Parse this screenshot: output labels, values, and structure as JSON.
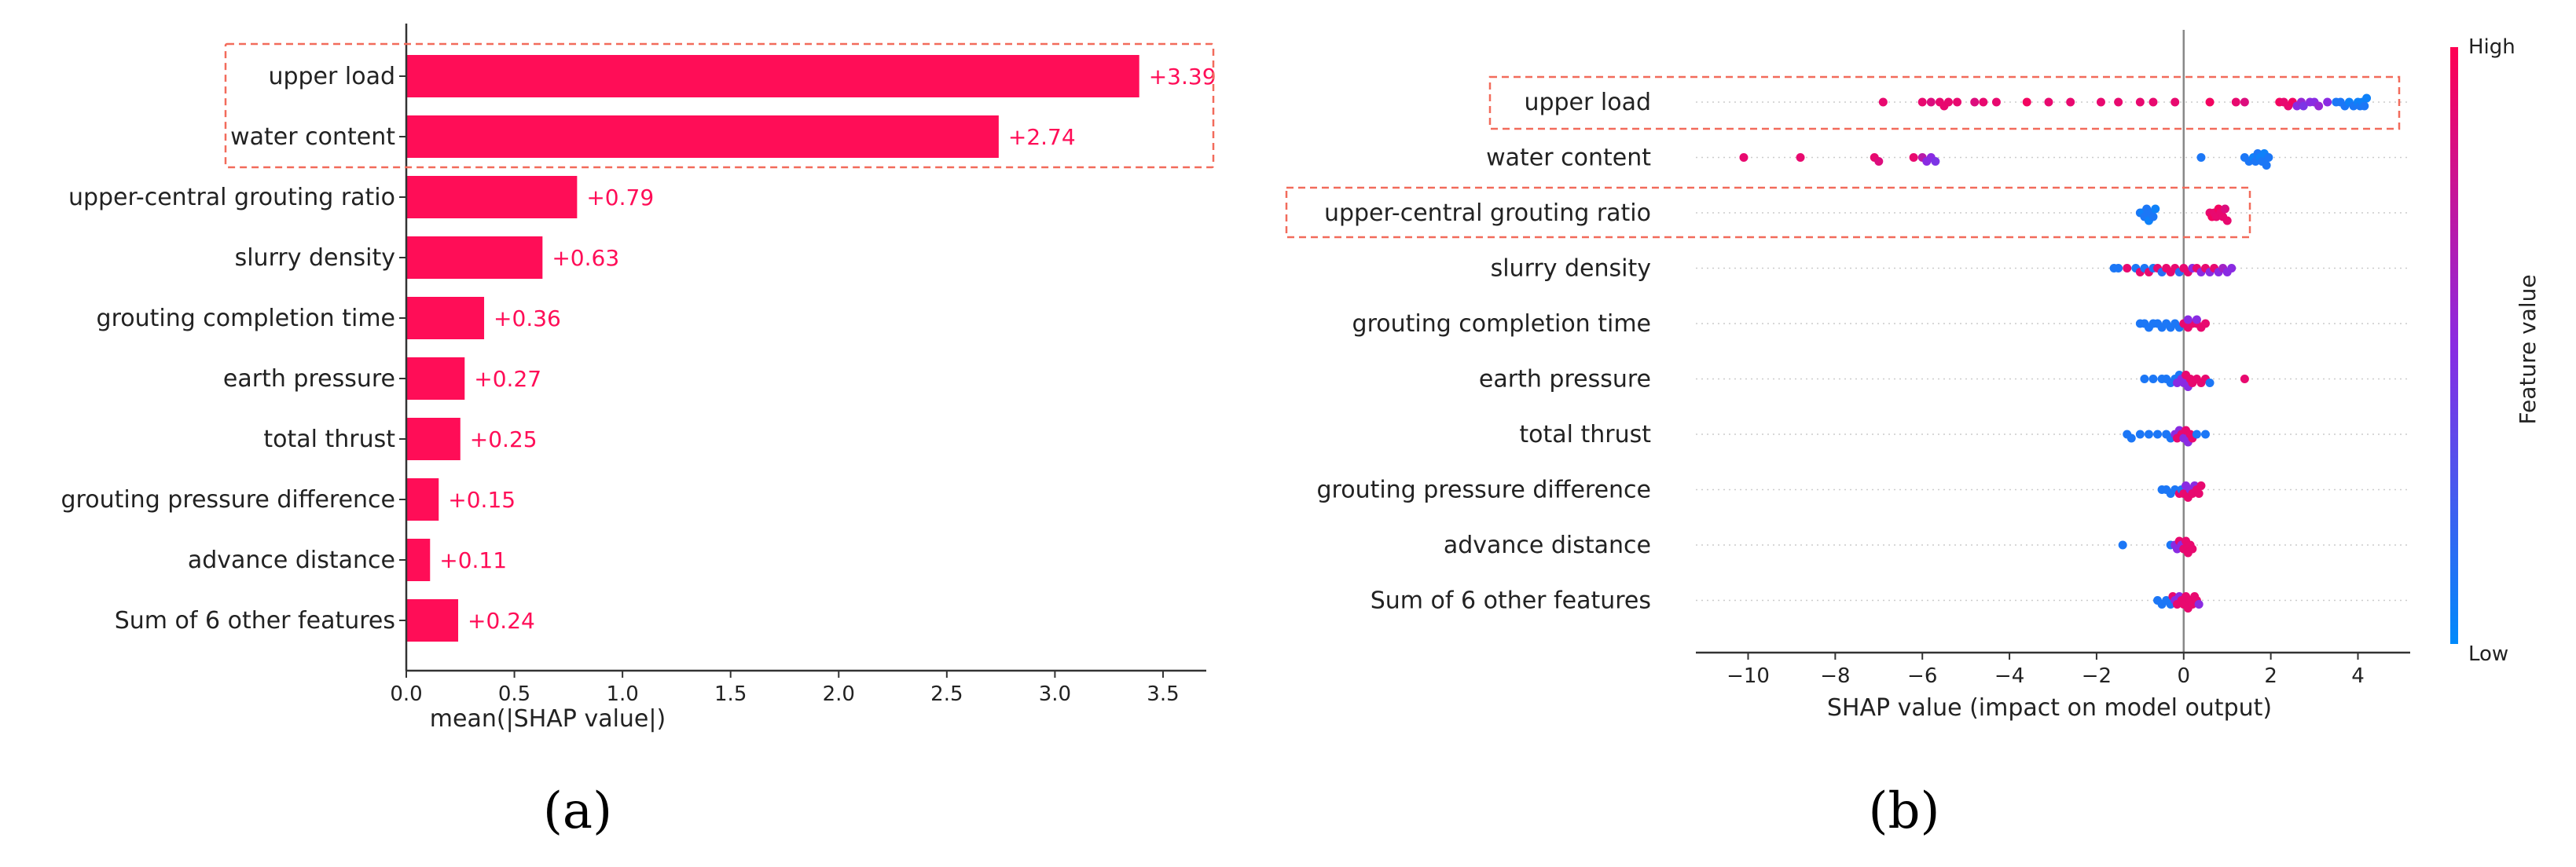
{
  "colors": {
    "bar": "#ff0d57",
    "value_label": "#ff0d57",
    "highlight_box": "#f26b5b",
    "axis": "#333333",
    "text": "#222222",
    "low": "#1e88e5",
    "high": "#ff0d57"
  },
  "panel_labels": {
    "a": "(a)",
    "b": "(b)"
  },
  "chart_data": [
    {
      "type": "bar",
      "orientation": "horizontal",
      "categories": [
        "upper load",
        "water content",
        "upper-central grouting ratio",
        "slurry density",
        "grouting completion time",
        "earth pressure",
        "total thrust",
        "grouting pressure difference",
        "advance distance",
        "Sum of 6 other features"
      ],
      "values": [
        3.39,
        2.74,
        0.79,
        0.63,
        0.36,
        0.27,
        0.25,
        0.15,
        0.11,
        0.24
      ],
      "value_labels": [
        "+3.39",
        "+2.74",
        "+0.79",
        "+0.63",
        "+0.36",
        "+0.27",
        "+0.25",
        "+0.15",
        "+0.11",
        "+0.24"
      ],
      "xlabel": "mean(|SHAP value|)",
      "xlim": [
        0,
        3.7
      ],
      "xticks": [
        0.0,
        0.5,
        1.0,
        1.5,
        2.0,
        2.5,
        3.0,
        3.5
      ],
      "xtick_labels": [
        "0.0",
        "0.5",
        "1.0",
        "1.5",
        "2.0",
        "2.5",
        "3.0",
        "3.5"
      ],
      "highlighted_categories": [
        "upper load",
        "water content"
      ],
      "grid": false
    },
    {
      "type": "scatter",
      "subtype": "beeswarm",
      "categories": [
        "upper load",
        "water content",
        "upper-central grouting ratio",
        "slurry density",
        "grouting completion time",
        "earth pressure",
        "total thrust",
        "grouting pressure difference",
        "advance distance",
        "Sum of 6 other features"
      ],
      "xlabel": "SHAP value (impact on model output)",
      "xlim": [
        -11.2,
        5.2
      ],
      "xticks": [
        -10,
        -8,
        -6,
        -4,
        -2,
        0,
        2,
        4
      ],
      "xtick_labels": [
        "−10",
        "−8",
        "−6",
        "−4",
        "−2",
        "0",
        "2",
        "4"
      ],
      "colorbar": {
        "label": "Feature value",
        "high_label": "High",
        "low_label": "Low"
      },
      "highlighted_categories": [
        "upper load",
        "upper-central grouting ratio"
      ],
      "series": [
        {
          "category": "upper load",
          "points": [
            [
              -6.9,
              0.9
            ],
            [
              -6.0,
              0.9
            ],
            [
              -5.8,
              0.85
            ],
            [
              -5.6,
              0.9
            ],
            [
              -5.5,
              0.9
            ],
            [
              -5.4,
              0.9
            ],
            [
              -5.2,
              0.9
            ],
            [
              -4.8,
              0.85
            ],
            [
              -4.6,
              0.9
            ],
            [
              -4.3,
              0.9
            ],
            [
              -3.6,
              0.95
            ],
            [
              -3.1,
              0.9
            ],
            [
              -2.6,
              0.9
            ],
            [
              -1.9,
              0.9
            ],
            [
              -1.5,
              0.9
            ],
            [
              -1.0,
              0.9
            ],
            [
              -0.7,
              0.9
            ],
            [
              -0.2,
              0.9
            ],
            [
              0.6,
              0.95
            ],
            [
              1.2,
              0.9
            ],
            [
              1.4,
              0.85
            ],
            [
              2.2,
              0.95
            ],
            [
              2.3,
              0.9
            ],
            [
              2.4,
              0.9
            ],
            [
              2.5,
              0.95
            ],
            [
              2.6,
              0.5
            ],
            [
              2.7,
              0.55
            ],
            [
              2.75,
              0.45
            ],
            [
              2.9,
              0.5
            ],
            [
              3.0,
              0.5
            ],
            [
              3.1,
              0.55
            ],
            [
              3.3,
              0.5
            ],
            [
              3.5,
              0.1
            ],
            [
              3.6,
              0.1
            ],
            [
              3.7,
              0.1
            ],
            [
              3.8,
              0.05
            ],
            [
              3.9,
              0.1
            ],
            [
              4.0,
              0.05
            ],
            [
              4.05,
              0.1
            ],
            [
              4.1,
              0.05
            ],
            [
              4.15,
              0.1
            ],
            [
              4.2,
              0.05
            ]
          ]
        },
        {
          "category": "water content",
          "points": [
            [
              -10.1,
              0.9
            ],
            [
              -8.8,
              0.9
            ],
            [
              -7.1,
              0.9
            ],
            [
              -7.0,
              0.85
            ],
            [
              -6.2,
              0.9
            ],
            [
              -6.0,
              0.7
            ],
            [
              -5.9,
              0.5
            ],
            [
              -5.8,
              0.5
            ],
            [
              -5.7,
              0.45
            ],
            [
              0.4,
              0.1
            ],
            [
              1.4,
              0.1
            ],
            [
              1.5,
              0.1
            ],
            [
              1.6,
              0.05
            ],
            [
              1.65,
              0.1
            ],
            [
              1.7,
              0.1
            ],
            [
              1.75,
              0.05
            ],
            [
              1.8,
              0.1
            ],
            [
              1.85,
              0.05
            ],
            [
              1.9,
              0.1
            ],
            [
              1.95,
              0.1
            ]
          ]
        },
        {
          "category": "upper-central grouting ratio",
          "points": [
            [
              -1.0,
              0.1
            ],
            [
              -0.95,
              0.05
            ],
            [
              -0.9,
              0.1
            ],
            [
              -0.85,
              0.1
            ],
            [
              -0.8,
              0.05
            ],
            [
              -0.75,
              0.1
            ],
            [
              -0.7,
              0.1
            ],
            [
              -0.65,
              0.05
            ],
            [
              0.6,
              0.9
            ],
            [
              0.65,
              0.95
            ],
            [
              0.7,
              0.9
            ],
            [
              0.75,
              0.9
            ],
            [
              0.8,
              0.95
            ],
            [
              0.85,
              0.9
            ],
            [
              0.9,
              0.9
            ],
            [
              0.95,
              0.85
            ],
            [
              1.0,
              0.9
            ]
          ]
        },
        {
          "category": "slurry density",
          "points": [
            [
              -1.6,
              0.1
            ],
            [
              -1.5,
              0.1
            ],
            [
              -1.3,
              0.9
            ],
            [
              -1.1,
              0.1
            ],
            [
              -1.0,
              0.9
            ],
            [
              -0.9,
              0.1
            ],
            [
              -0.8,
              0.9
            ],
            [
              -0.7,
              0.1
            ],
            [
              -0.6,
              0.9
            ],
            [
              -0.5,
              0.15
            ],
            [
              -0.4,
              0.9
            ],
            [
              -0.3,
              0.9
            ],
            [
              -0.2,
              0.9
            ],
            [
              -0.1,
              0.15
            ],
            [
              0.0,
              0.9
            ],
            [
              0.1,
              0.9
            ],
            [
              0.2,
              0.5
            ],
            [
              0.3,
              0.9
            ],
            [
              0.4,
              0.5
            ],
            [
              0.5,
              0.9
            ],
            [
              0.6,
              0.5
            ],
            [
              0.7,
              0.9
            ],
            [
              0.8,
              0.5
            ],
            [
              0.9,
              0.6
            ],
            [
              1.0,
              0.5
            ],
            [
              1.1,
              0.5
            ]
          ]
        },
        {
          "category": "grouting completion time",
          "points": [
            [
              -1.0,
              0.1
            ],
            [
              -0.9,
              0.1
            ],
            [
              -0.8,
              0.1
            ],
            [
              -0.7,
              0.1
            ],
            [
              -0.6,
              0.1
            ],
            [
              -0.5,
              0.1
            ],
            [
              -0.4,
              0.1
            ],
            [
              -0.3,
              0.1
            ],
            [
              -0.2,
              0.1
            ],
            [
              -0.1,
              0.1
            ],
            [
              0.0,
              0.9
            ],
            [
              0.1,
              0.9
            ],
            [
              0.2,
              0.9
            ],
            [
              0.3,
              0.9
            ],
            [
              0.4,
              0.9
            ],
            [
              0.5,
              0.9
            ],
            [
              0.1,
              0.5
            ],
            [
              0.3,
              0.5
            ]
          ]
        },
        {
          "category": "earth pressure",
          "points": [
            [
              -0.9,
              0.1
            ],
            [
              -0.7,
              0.1
            ],
            [
              -0.5,
              0.1
            ],
            [
              -0.4,
              0.1
            ],
            [
              -0.3,
              0.1
            ],
            [
              -0.2,
              0.1
            ],
            [
              -0.15,
              0.5
            ],
            [
              -0.1,
              0.1
            ],
            [
              -0.05,
              0.5
            ],
            [
              0.0,
              0.5
            ],
            [
              0.05,
              0.9
            ],
            [
              0.1,
              0.5
            ],
            [
              0.15,
              0.9
            ],
            [
              0.2,
              0.9
            ],
            [
              0.3,
              0.9
            ],
            [
              0.4,
              0.9
            ],
            [
              0.5,
              0.9
            ],
            [
              0.6,
              0.1
            ],
            [
              1.4,
              0.9
            ]
          ]
        },
        {
          "category": "total thrust",
          "points": [
            [
              -1.3,
              0.1
            ],
            [
              -1.2,
              0.1
            ],
            [
              -1.0,
              0.1
            ],
            [
              -0.8,
              0.1
            ],
            [
              -0.6,
              0.1
            ],
            [
              -0.4,
              0.1
            ],
            [
              -0.3,
              0.1
            ],
            [
              -0.2,
              0.5
            ],
            [
              -0.15,
              0.9
            ],
            [
              -0.1,
              0.5
            ],
            [
              -0.05,
              0.9
            ],
            [
              0.0,
              0.5
            ],
            [
              0.05,
              0.9
            ],
            [
              0.1,
              0.5
            ],
            [
              0.15,
              0.9
            ],
            [
              0.2,
              0.9
            ],
            [
              0.3,
              0.1
            ],
            [
              0.5,
              0.1
            ]
          ]
        },
        {
          "category": "grouting pressure difference",
          "points": [
            [
              -0.5,
              0.1
            ],
            [
              -0.4,
              0.1
            ],
            [
              -0.3,
              0.1
            ],
            [
              -0.2,
              0.1
            ],
            [
              -0.1,
              0.9
            ],
            [
              -0.05,
              0.1
            ],
            [
              0.0,
              0.9
            ],
            [
              0.05,
              0.5
            ],
            [
              0.1,
              0.9
            ],
            [
              0.15,
              0.5
            ],
            [
              0.2,
              0.9
            ],
            [
              0.25,
              0.5
            ],
            [
              0.3,
              0.9
            ],
            [
              0.35,
              0.9
            ],
            [
              0.4,
              0.9
            ]
          ]
        },
        {
          "category": "advance distance",
          "points": [
            [
              -1.4,
              0.1
            ],
            [
              -0.3,
              0.1
            ],
            [
              -0.2,
              0.5
            ],
            [
              -0.15,
              0.5
            ],
            [
              -0.1,
              0.9
            ],
            [
              -0.05,
              0.5
            ],
            [
              0.0,
              0.9
            ],
            [
              0.05,
              0.9
            ],
            [
              0.1,
              0.9
            ],
            [
              0.15,
              0.9
            ],
            [
              0.2,
              0.9
            ]
          ]
        },
        {
          "category": "Sum of 6 other features",
          "points": [
            [
              -0.6,
              0.1
            ],
            [
              -0.5,
              0.1
            ],
            [
              -0.4,
              0.1
            ],
            [
              -0.3,
              0.1
            ],
            [
              -0.25,
              0.9
            ],
            [
              -0.2,
              0.5
            ],
            [
              -0.15,
              0.9
            ],
            [
              -0.1,
              0.5
            ],
            [
              -0.05,
              0.9
            ],
            [
              0.0,
              0.9
            ],
            [
              0.05,
              0.9
            ],
            [
              0.1,
              0.9
            ],
            [
              0.15,
              0.9
            ],
            [
              0.2,
              0.9
            ],
            [
              0.25,
              0.9
            ],
            [
              0.3,
              0.9
            ],
            [
              0.35,
              0.5
            ]
          ]
        }
      ]
    }
  ]
}
